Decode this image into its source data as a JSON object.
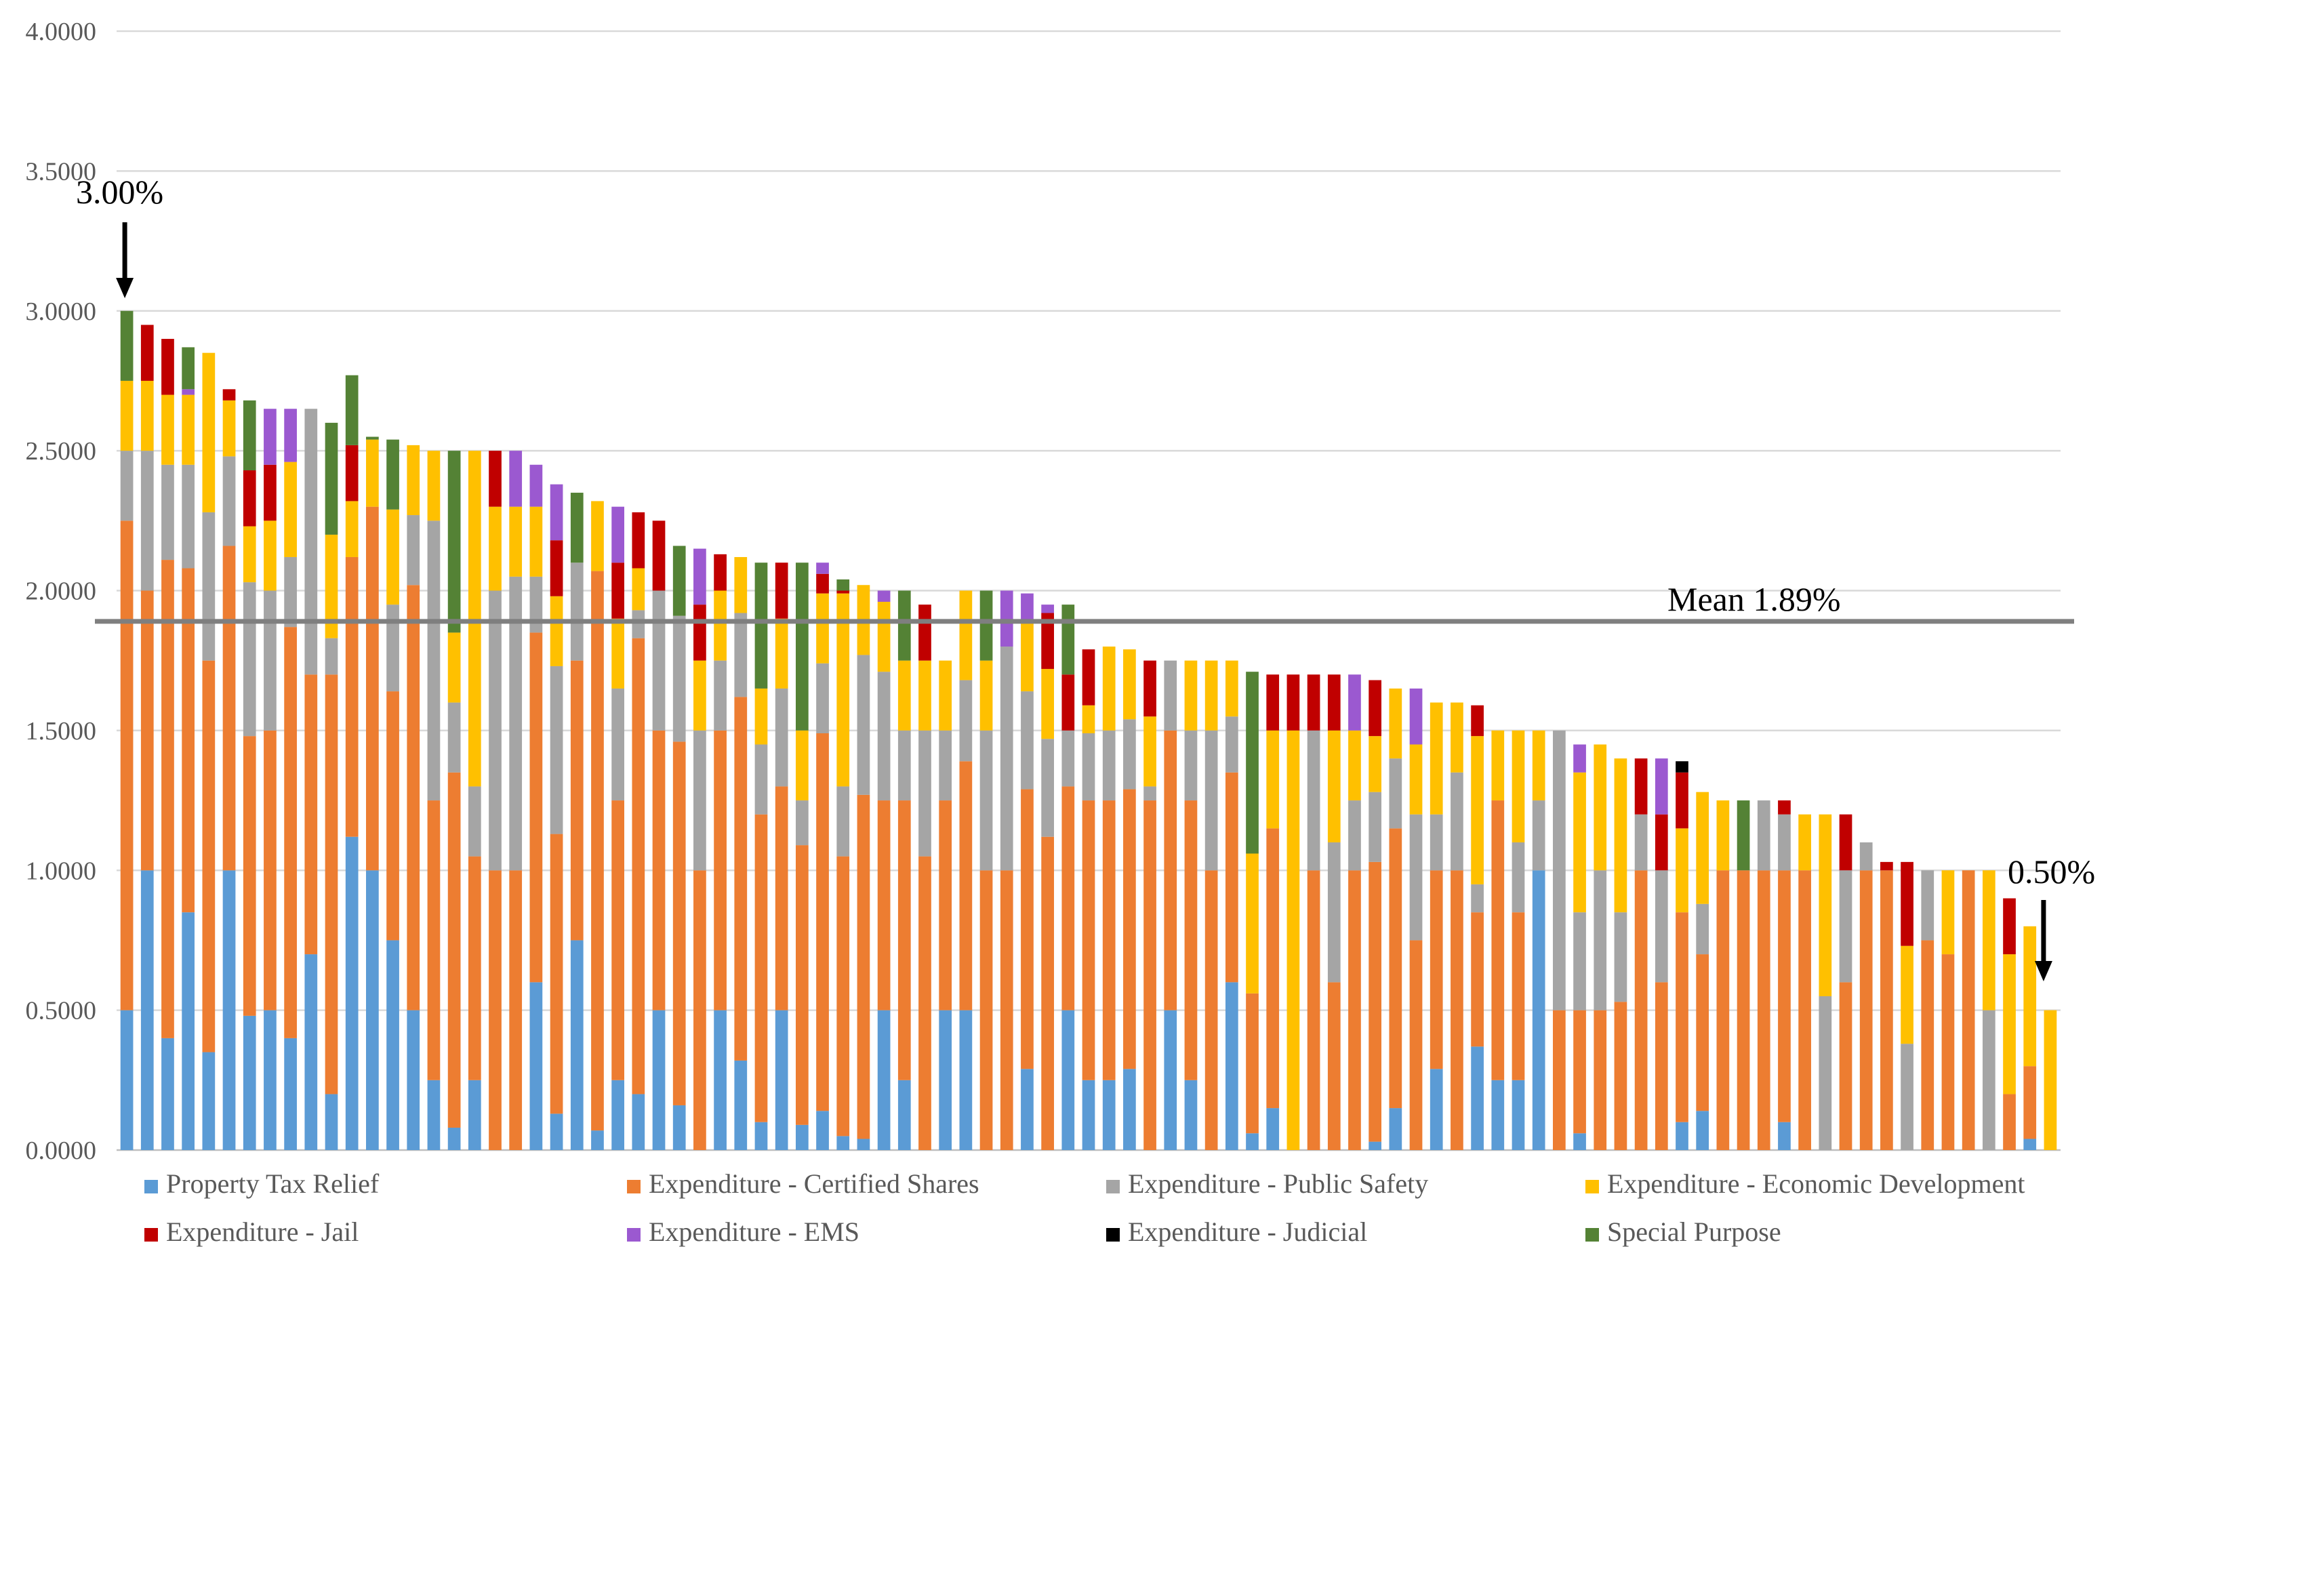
{
  "chart_data": {
    "type": "bar",
    "stacked": true,
    "title": "",
    "xlabel": "",
    "ylabel": "",
    "ylim": [
      0,
      4
    ],
    "yticks": [
      "0.0000",
      "0.5000",
      "1.0000",
      "1.5000",
      "2.0000",
      "2.5000",
      "3.0000",
      "3.5000",
      "4.0000"
    ],
    "grid": true,
    "legend_position": "bottom",
    "series": [
      {
        "key": "ptr",
        "name": "Property Tax Relief",
        "color": "#5b9bd5"
      },
      {
        "key": "cs",
        "name": "Expenditure - Certified Shares",
        "color": "#ed7d31"
      },
      {
        "key": "ps",
        "name": "Expenditure - Public Safety",
        "color": "#a5a5a5"
      },
      {
        "key": "ed",
        "name": "Expenditure - Economic Development",
        "color": "#ffc000"
      },
      {
        "key": "jail",
        "name": "Expenditure - Jail",
        "color": "#c00000"
      },
      {
        "key": "ems",
        "name": "Expenditure - EMS",
        "color": "#9b59d0"
      },
      {
        "key": "jud",
        "name": "Expenditure - Judicial",
        "color": "#000000"
      },
      {
        "key": "sp",
        "name": "Special Purpose",
        "color": "#548235"
      }
    ],
    "bars": [
      {
        "ptr": 0.5,
        "cs": 1.75,
        "ps": 0.25,
        "ed": 0.25,
        "sp": 0.25
      },
      {
        "ptr": 1.0,
        "cs": 1.0,
        "ps": 0.5,
        "ed": 0.25,
        "jail": 0.2
      },
      {
        "ptr": 0.4,
        "cs": 1.71,
        "ps": 0.34,
        "ed": 0.25,
        "jail": 0.2
      },
      {
        "ptr": 0.85,
        "cs": 1.23,
        "ps": 0.37,
        "ed": 0.25,
        "ems": 0.02,
        "sp": 0.15
      },
      {
        "ptr": 0.35,
        "cs": 1.4,
        "ps": 0.53,
        "ed": 0.57
      },
      {
        "ptr": 1.0,
        "cs": 1.16,
        "ps": 0.32,
        "ed": 0.2,
        "jail": 0.04
      },
      {
        "ptr": 0.48,
        "cs": 1.0,
        "ps": 0.55,
        "ed": 0.2,
        "jail": 0.2,
        "sp": 0.25
      },
      {
        "ptr": 0.5,
        "cs": 1.0,
        "ps": 0.5,
        "ed": 0.25,
        "jail": 0.2,
        "ems": 0.2
      },
      {
        "ptr": 0.4,
        "cs": 1.47,
        "ps": 0.25,
        "ed": 0.34,
        "ems": 0.19
      },
      {
        "ptr": 0.7,
        "cs": 1.0,
        "ps": 0.95
      },
      {
        "ptr": 0.2,
        "cs": 1.5,
        "ps": 0.13,
        "ed": 0.37,
        "sp": 0.4
      },
      {
        "ptr": 1.12,
        "cs": 1.0,
        "ed": 0.2,
        "jail": 0.2,
        "sp": 0.25
      },
      {
        "ptr": 1.0,
        "cs": 1.3,
        "ed": 0.24,
        "sp": 0.01
      },
      {
        "ptr": 0.75,
        "cs": 0.89,
        "ps": 0.31,
        "ed": 0.34,
        "sp": 0.25
      },
      {
        "ptr": 0.5,
        "cs": 1.52,
        "ps": 0.25,
        "ed": 0.25
      },
      {
        "ptr": 0.25,
        "cs": 1.0,
        "ps": 1.0,
        "ed": 0.25
      },
      {
        "ptr": 0.08,
        "cs": 1.27,
        "ps": 0.25,
        "ed": 0.25,
        "sp": 0.65
      },
      {
        "ptr": 0.25,
        "cs": 0.8,
        "ps": 0.25,
        "ed": 1.2
      },
      {
        "cs": 1.0,
        "ps": 1.0,
        "ed": 0.3,
        "jail": 0.2
      },
      {
        "cs": 1.0,
        "ps": 1.05,
        "ed": 0.25,
        "ems": 0.2
      },
      {
        "ptr": 0.6,
        "cs": 1.25,
        "ps": 0.2,
        "ed": 0.25,
        "ems": 0.15
      },
      {
        "ptr": 0.13,
        "cs": 1.0,
        "ps": 0.6,
        "ed": 0.25,
        "jail": 0.2,
        "ems": 0.2
      },
      {
        "ptr": 0.75,
        "cs": 1.0,
        "ps": 0.35,
        "sp": 0.25
      },
      {
        "ptr": 0.07,
        "cs": 2.0,
        "ed": 0.25
      },
      {
        "ptr": 0.25,
        "cs": 1.0,
        "ps": 0.4,
        "ed": 0.25,
        "jail": 0.2,
        "ems": 0.2
      },
      {
        "ptr": 0.2,
        "cs": 1.63,
        "ps": 0.1,
        "ed": 0.15,
        "jail": 0.2
      },
      {
        "ptr": 0.5,
        "cs": 1.0,
        "ps": 0.5,
        "jail": 0.25
      },
      {
        "ptr": 0.16,
        "cs": 1.3,
        "ps": 0.45,
        "sp": 0.25
      },
      {
        "cs": 1.0,
        "ps": 0.5,
        "ed": 0.25,
        "jail": 0.2,
        "ems": 0.2
      },
      {
        "ptr": 0.5,
        "cs": 1.0,
        "ps": 0.25,
        "ed": 0.25,
        "jail": 0.13
      },
      {
        "ptr": 0.32,
        "cs": 1.3,
        "ps": 0.3,
        "ed": 0.2
      },
      {
        "ptr": 0.1,
        "cs": 1.1,
        "ps": 0.25,
        "ed": 0.2,
        "sp": 0.45
      },
      {
        "ptr": 0.5,
        "cs": 0.8,
        "ps": 0.35,
        "ed": 0.25,
        "jail": 0.2
      },
      {
        "ptr": 0.09,
        "cs": 1.0,
        "ps": 0.16,
        "ed": 0.25,
        "sp": 0.6
      },
      {
        "ptr": 0.14,
        "cs": 1.35,
        "ps": 0.25,
        "ed": 0.25,
        "jail": 0.07,
        "ems": 0.04
      },
      {
        "ptr": 0.05,
        "cs": 1.0,
        "ps": 0.25,
        "ed": 0.69,
        "jail": 0.01,
        "sp": 0.04
      },
      {
        "ptr": 0.04,
        "cs": 1.23,
        "ps": 0.5,
        "ed": 0.25
      },
      {
        "ptr": 0.5,
        "cs": 0.75,
        "ps": 0.46,
        "ed": 0.25,
        "ems": 0.04
      },
      {
        "ptr": 0.25,
        "cs": 1.0,
        "ps": 0.25,
        "ed": 0.25,
        "sp": 0.25
      },
      {
        "cs": 1.05,
        "ps": 0.45,
        "ed": 0.25,
        "jail": 0.2
      },
      {
        "ptr": 0.5,
        "cs": 0.75,
        "ps": 0.25,
        "ed": 0.25
      },
      {
        "ptr": 0.5,
        "cs": 0.89,
        "ps": 0.29,
        "ed": 0.32
      },
      {
        "cs": 1.0,
        "ps": 0.5,
        "ed": 0.25,
        "sp": 0.25
      },
      {
        "cs": 1.0,
        "ps": 0.8,
        "ems": 0.2
      },
      {
        "ptr": 0.29,
        "cs": 1.0,
        "ps": 0.35,
        "ed": 0.25,
        "ems": 0.1
      },
      {
        "cs": 1.12,
        "ps": 0.35,
        "ed": 0.25,
        "jail": 0.2,
        "ems": 0.03
      },
      {
        "ptr": 0.5,
        "cs": 0.8,
        "ps": 0.2,
        "jail": 0.2,
        "sp": 0.25
      },
      {
        "ptr": 0.25,
        "cs": 1.0,
        "ps": 0.24,
        "ed": 0.1,
        "jail": 0.2
      },
      {
        "ptr": 0.25,
        "cs": 1.0,
        "ps": 0.25,
        "ed": 0.3
      },
      {
        "ptr": 0.29,
        "cs": 1.0,
        "ps": 0.25,
        "ed": 0.25
      },
      {
        "cs": 1.25,
        "ps": 0.05,
        "ed": 0.25,
        "jail": 0.2
      },
      {
        "ptr": 0.5,
        "cs": 1.0,
        "ps": 0.25
      },
      {
        "ptr": 0.25,
        "cs": 1.0,
        "ps": 0.25,
        "ed": 0.25
      },
      {
        "cs": 1.0,
        "ps": 0.5,
        "ed": 0.25
      },
      {
        "ptr": 0.6,
        "cs": 0.75,
        "ps": 0.2,
        "ed": 0.2
      },
      {
        "ptr": 0.06,
        "cs": 0.5,
        "ed": 0.5,
        "sp": 0.65
      },
      {
        "ptr": 0.15,
        "cs": 1.0,
        "ed": 0.35,
        "jail": 0.2
      },
      {
        "ed": 1.5,
        "jail": 0.2
      },
      {
        "cs": 1.0,
        "ps": 0.5,
        "jail": 0.2
      },
      {
        "cs": 0.6,
        "ps": 0.5,
        "ed": 0.4,
        "jail": 0.2
      },
      {
        "cs": 1.0,
        "ps": 0.25,
        "ed": 0.25,
        "ems": 0.2
      },
      {
        "ptr": 0.03,
        "cs": 1.0,
        "ps": 0.25,
        "ed": 0.2,
        "jail": 0.2
      },
      {
        "ptr": 0.15,
        "cs": 1.0,
        "ps": 0.25,
        "ed": 0.25
      },
      {
        "cs": 0.75,
        "ps": 0.45,
        "ed": 0.25,
        "ems": 0.2
      },
      {
        "ptr": 0.29,
        "cs": 0.71,
        "ps": 0.2,
        "ed": 0.4
      },
      {
        "cs": 1.0,
        "ps": 0.35,
        "ed": 0.25
      },
      {
        "ptr": 0.37,
        "cs": 0.48,
        "ps": 0.1,
        "ed": 0.53,
        "jail": 0.11
      },
      {
        "ptr": 0.25,
        "cs": 1.0,
        "ed": 0.25
      },
      {
        "ptr": 0.25,
        "cs": 0.6,
        "ps": 0.25,
        "ed": 0.4
      },
      {
        "ptr": 1.0,
        "ps": 0.25,
        "ed": 0.25
      },
      {
        "cs": 0.5,
        "ps": 1.0
      },
      {
        "ptr": 0.06,
        "cs": 0.44,
        "ps": 0.35,
        "ed": 0.5,
        "ems": 0.1
      },
      {
        "cs": 0.5,
        "ps": 0.5,
        "ed": 0.45
      },
      {
        "cs": 0.53,
        "ps": 0.32,
        "ed": 0.55
      },
      {
        "cs": 1.0,
        "ps": 0.2,
        "jail": 0.2
      },
      {
        "cs": 0.6,
        "ps": 0.4,
        "jail": 0.2,
        "ems": 0.2
      },
      {
        "ptr": 0.1,
        "cs": 0.75,
        "ed": 0.3,
        "jail": 0.2,
        "jud": 0.04
      },
      {
        "ptr": 0.14,
        "cs": 0.56,
        "ps": 0.18,
        "ed": 0.4
      },
      {
        "cs": 1.0,
        "ed": 0.25
      },
      {
        "cs": 1.0,
        "sp": 0.25
      },
      {
        "cs": 1.0,
        "ps": 0.25
      },
      {
        "ptr": 0.1,
        "cs": 0.9,
        "ps": 0.2,
        "jail": 0.05
      },
      {
        "cs": 1.0,
        "ed": 0.2
      },
      {
        "ps": 0.55,
        "ed": 0.65
      },
      {
        "cs": 0.6,
        "ps": 0.4,
        "jail": 0.2
      },
      {
        "cs": 1.0,
        "ps": 0.1
      },
      {
        "cs": 1.0,
        "jail": 0.03
      },
      {
        "ps": 0.38,
        "ed": 0.35,
        "jail": 0.3
      },
      {
        "cs": 0.75,
        "ps": 0.25
      },
      {
        "cs": 0.7,
        "ed": 0.3
      },
      {
        "cs": 1.0
      },
      {
        "ps": 0.5,
        "ed": 0.5
      },
      {
        "cs": 0.2,
        "ed": 0.5,
        "jail": 0.2
      },
      {
        "ptr": 0.04,
        "cs": 0.26,
        "ed": 0.5
      },
      {
        "ed": 0.5
      }
    ],
    "annotations": {
      "max_label": "3.00%",
      "min_label": "0.50%",
      "mean_label": "Mean 1.89%",
      "mean_value": 1.89
    }
  }
}
